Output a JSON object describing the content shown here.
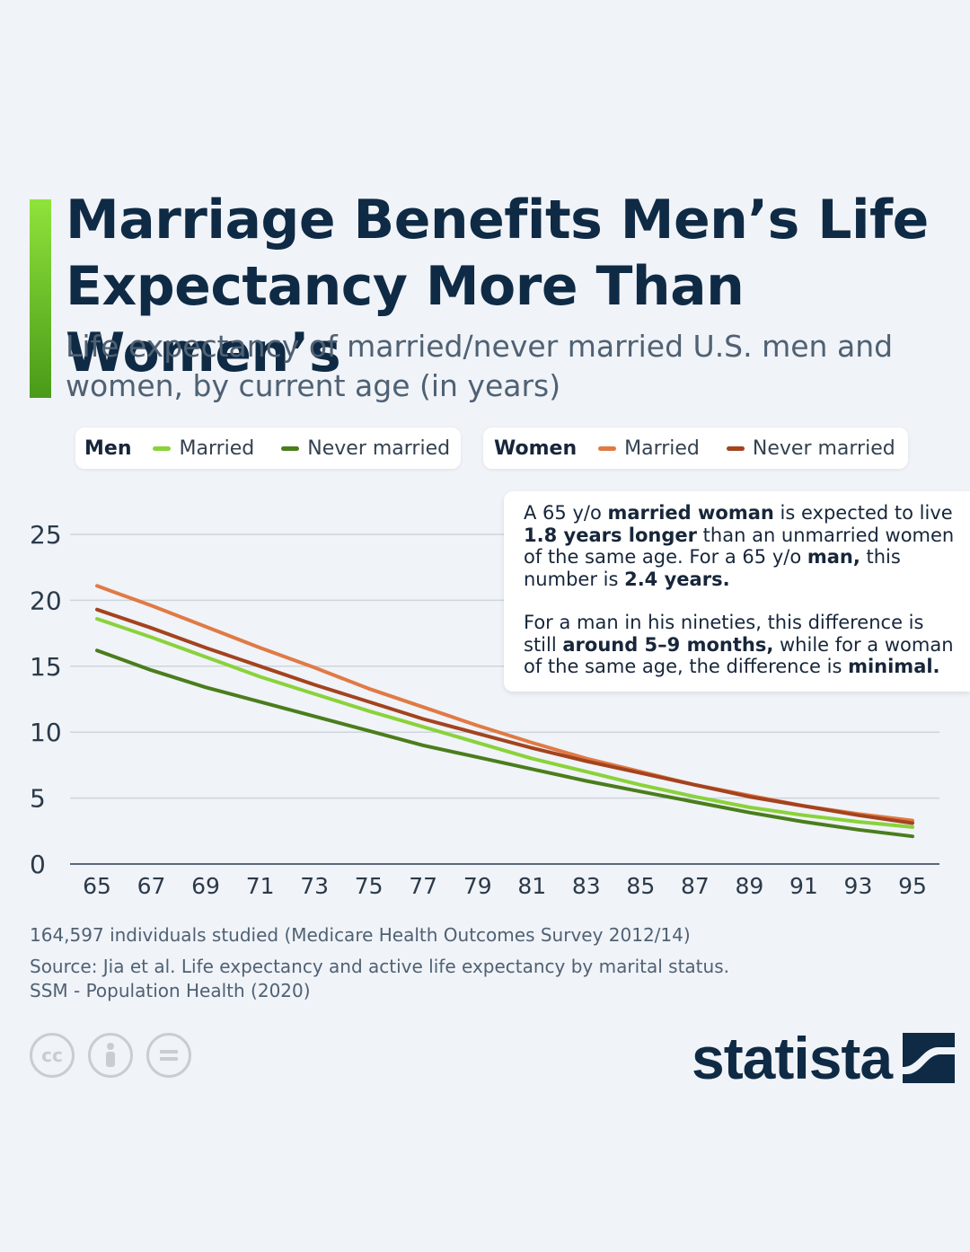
{
  "header": {
    "title": "Marriage Benefits Men’s Life Expectancy More Than Women’s",
    "subtitle": "Life expectancy of married/never married U.S. men and women, by current age (in years)"
  },
  "legend": {
    "men": {
      "group": "Men",
      "married": "Married",
      "never_married": "Never married"
    },
    "women": {
      "group": "Women",
      "married": "Married",
      "never_married": "Never married"
    }
  },
  "annotation": {
    "p1": [
      "A 65 y/o ",
      "married woman",
      " is expected to live ",
      "1.8 years longer",
      " than an unmarried women of the same age. For a 65 y/o ",
      "man,",
      " this number is ",
      "2.4 years."
    ],
    "p2": [
      "For a man in his nineties, this difference is still ",
      "around 5–9 months,",
      " while for a woman of the same age, the difference is ",
      "minimal."
    ]
  },
  "footer": {
    "note": "164,597 individuals studied (Medicare Health Outcomes Survey 2012/14)",
    "source_line1": "Source: Jia et al. Life expectancy and active life expectancy by marital status.",
    "source_line2": "SSM - Population Health (2020)",
    "brand": "statista",
    "license_icons": [
      "cc-icon",
      "person-icon",
      "equals-icon"
    ]
  },
  "colors": {
    "men_married": "#8ad23a",
    "men_never_married": "#4a7d1c",
    "women_married": "#e07a45",
    "women_never_married": "#a3431f",
    "accent": "#6fc227",
    "title": "#0f2a44"
  },
  "chart_data": {
    "type": "line",
    "x": [
      65,
      67,
      69,
      71,
      73,
      75,
      77,
      79,
      81,
      83,
      85,
      87,
      89,
      91,
      93,
      95
    ],
    "xticks": [
      "65",
      "67",
      "69",
      "71",
      "73",
      "75",
      "77",
      "79",
      "81",
      "83",
      "85",
      "87",
      "89",
      "91",
      "93",
      "95"
    ],
    "yticks": [
      0,
      5,
      10,
      15,
      20,
      25
    ],
    "ylim": [
      0,
      25
    ],
    "grid": true,
    "series": [
      {
        "name": "Married",
        "group": "Women",
        "values": [
          21.1,
          19.6,
          18.0,
          16.4,
          14.9,
          13.3,
          11.9,
          10.5,
          9.2,
          8.0,
          7.0,
          6.0,
          5.2,
          4.4,
          3.8,
          3.3
        ]
      },
      {
        "name": "Never married",
        "group": "Women",
        "values": [
          19.3,
          17.9,
          16.4,
          15.0,
          13.6,
          12.3,
          11.0,
          9.9,
          8.8,
          7.8,
          6.9,
          6.0,
          5.1,
          4.4,
          3.7,
          3.1
        ]
      },
      {
        "name": "Married",
        "group": "Men",
        "values": [
          18.6,
          17.2,
          15.7,
          14.2,
          12.9,
          11.6,
          10.4,
          9.2,
          8.0,
          7.0,
          6.0,
          5.1,
          4.3,
          3.7,
          3.2,
          2.8
        ]
      },
      {
        "name": "Never married",
        "group": "Men",
        "values": [
          16.2,
          14.7,
          13.4,
          12.3,
          11.2,
          10.1,
          9.0,
          8.1,
          7.2,
          6.3,
          5.5,
          4.7,
          3.9,
          3.2,
          2.6,
          2.1
        ]
      }
    ]
  }
}
